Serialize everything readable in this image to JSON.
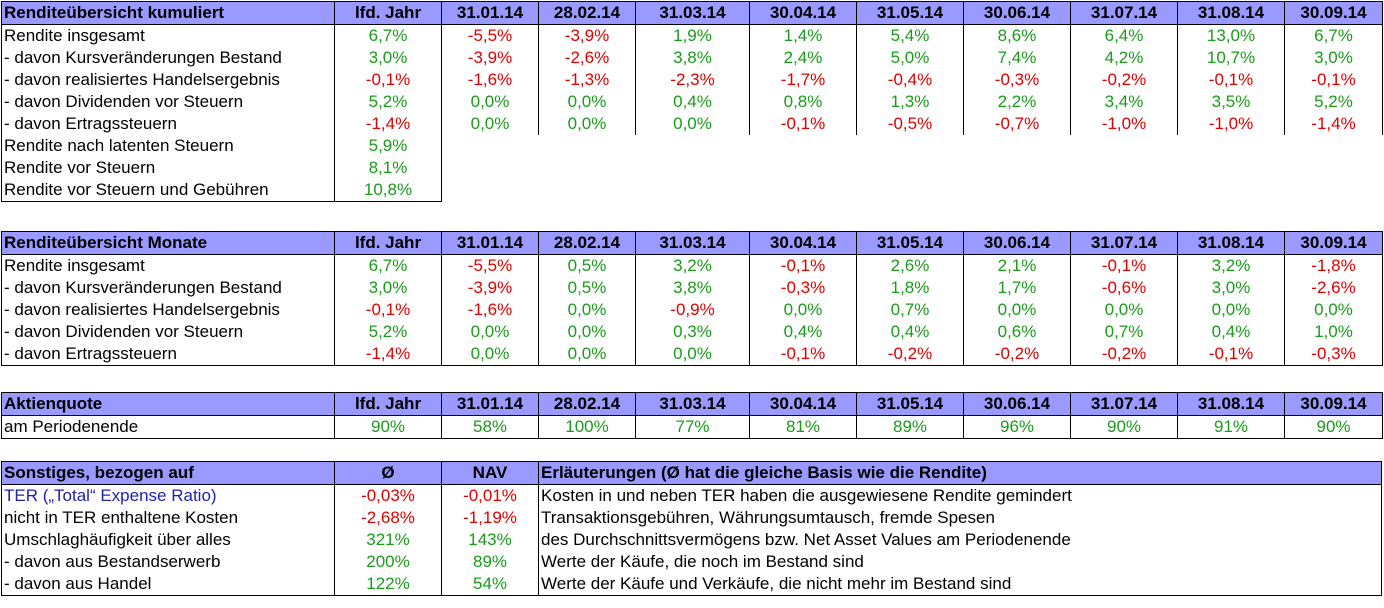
{
  "colors": {
    "header_bg": "#9999ff",
    "positive": "#1a9c1a",
    "negative": "#e00000",
    "ter_blue": "#1f1fb0"
  },
  "kumuliert": {
    "title": "Renditeübersicht kumuliert",
    "columns": [
      "lfd. Jahr",
      "31.01.14",
      "28.02.14",
      "31.03.14",
      "30.04.14",
      "31.05.14",
      "30.06.14",
      "31.07.14",
      "31.08.14",
      "30.09.14"
    ],
    "rows": [
      {
        "label": "Rendite insgesamt",
        "values": [
          "6,7%",
          "-5,5%",
          "-3,9%",
          "1,9%",
          "1,4%",
          "5,4%",
          "8,6%",
          "6,4%",
          "13,0%",
          "6,7%"
        ]
      },
      {
        "label": "- davon Kursveränderungen Bestand",
        "values": [
          "3,0%",
          "-3,9%",
          "-2,6%",
          "3,8%",
          "2,4%",
          "5,0%",
          "7,4%",
          "4,2%",
          "10,7%",
          "3,0%"
        ]
      },
      {
        "label": "- davon realisiertes Handelsergebnis",
        "values": [
          "-0,1%",
          "-1,6%",
          "-1,3%",
          "-2,3%",
          "-1,7%",
          "-0,4%",
          "-0,3%",
          "-0,2%",
          "-0,1%",
          "-0,1%"
        ]
      },
      {
        "label": "- davon Dividenden vor Steuern",
        "values": [
          "5,2%",
          "0,0%",
          "0,0%",
          "0,4%",
          "0,8%",
          "1,3%",
          "2,2%",
          "3,4%",
          "3,5%",
          "5,2%"
        ]
      },
      {
        "label": "- davon Ertragssteuern",
        "values": [
          "-1,4%",
          "0,0%",
          "0,0%",
          "0,0%",
          "-0,1%",
          "-0,5%",
          "-0,7%",
          "-1,0%",
          "-1,0%",
          "-1,4%"
        ]
      }
    ],
    "extra_rows": [
      {
        "label": "Rendite nach latenten Steuern",
        "value": "5,9%"
      },
      {
        "label": "Rendite vor Steuern",
        "value": "8,1%"
      },
      {
        "label": "Rendite vor Steuern und Gebühren",
        "value": "10,8%"
      }
    ]
  },
  "monate": {
    "title": "Renditeübersicht Monate",
    "columns": [
      "lfd. Jahr",
      "31.01.14",
      "28.02.14",
      "31.03.14",
      "30.04.14",
      "31.05.14",
      "30.06.14",
      "31.07.14",
      "31.08.14",
      "30.09.14"
    ],
    "rows": [
      {
        "label": "Rendite insgesamt",
        "values": [
          "6,7%",
          "-5,5%",
          "0,5%",
          "3,2%",
          "-0,1%",
          "2,6%",
          "2,1%",
          "-0,1%",
          "3,2%",
          "-1,8%"
        ]
      },
      {
        "label": "- davon Kursveränderungen Bestand",
        "values": [
          "3,0%",
          "-3,9%",
          "0,5%",
          "3,8%",
          "-0,3%",
          "1,8%",
          "1,7%",
          "-0,6%",
          "3,0%",
          "-2,6%"
        ]
      },
      {
        "label": "- davon realisiertes Handelsergebnis",
        "values": [
          "-0,1%",
          "-1,6%",
          "0,0%",
          "-0,9%",
          "0,0%",
          "0,7%",
          "0,0%",
          "0,0%",
          "0,0%",
          "0,0%"
        ]
      },
      {
        "label": "- davon Dividenden vor Steuern",
        "values": [
          "5,2%",
          "0,0%",
          "0,0%",
          "0,3%",
          "0,4%",
          "0,4%",
          "0,6%",
          "0,7%",
          "0,4%",
          "1,0%"
        ]
      },
      {
        "label": "- davon Ertragssteuern",
        "values": [
          "-1,4%",
          "0,0%",
          "0,0%",
          "0,0%",
          "-0,1%",
          "-0,2%",
          "-0,2%",
          "-0,2%",
          "-0,1%",
          "-0,3%"
        ]
      }
    ]
  },
  "aktienquote": {
    "title": "Aktienquote",
    "columns": [
      "lfd. Jahr",
      "31.01.14",
      "28.02.14",
      "31.03.14",
      "30.04.14",
      "31.05.14",
      "30.06.14",
      "31.07.14",
      "31.08.14",
      "30.09.14"
    ],
    "row": {
      "label": "am Periodenende",
      "values": [
        "90%",
        "58%",
        "100%",
        "77%",
        "81%",
        "89%",
        "96%",
        "90%",
        "91%",
        "90%"
      ]
    }
  },
  "sonstiges": {
    "title": "Sonstiges, bezogen auf",
    "col_avg": "Ø",
    "col_nav": "NAV",
    "col_expl": "Erläuterungen (Ø hat die gleiche Basis wie die Rendite)",
    "rows": [
      {
        "label": "TER („Total“ Expense Ratio)",
        "avg": "-0,03%",
        "nav": "-0,01%",
        "expl": "Kosten in und neben TER haben die ausgewiesene Rendite gemindert"
      },
      {
        "label": "nicht in TER enthaltene Kosten",
        "avg": "-2,68%",
        "nav": "-1,19%",
        "expl": "Transaktionsgebühren, Währungsumtausch, fremde Spesen"
      },
      {
        "label": "Umschlaghäufigkeit über alles",
        "avg": "321%",
        "nav": "143%",
        "expl": "des Durchschnittsvermögens bzw. Net Asset Values am Periodenende"
      },
      {
        "label": "- davon aus Bestandserwerb",
        "avg": "200%",
        "nav": "89%",
        "expl": "Werte der Käufe, die noch im Bestand sind"
      },
      {
        "label": "- davon aus Handel",
        "avg": "122%",
        "nav": "54%",
        "expl": "Werte der Käufe und Verkäufe, die nicht mehr im Bestand sind"
      }
    ]
  }
}
